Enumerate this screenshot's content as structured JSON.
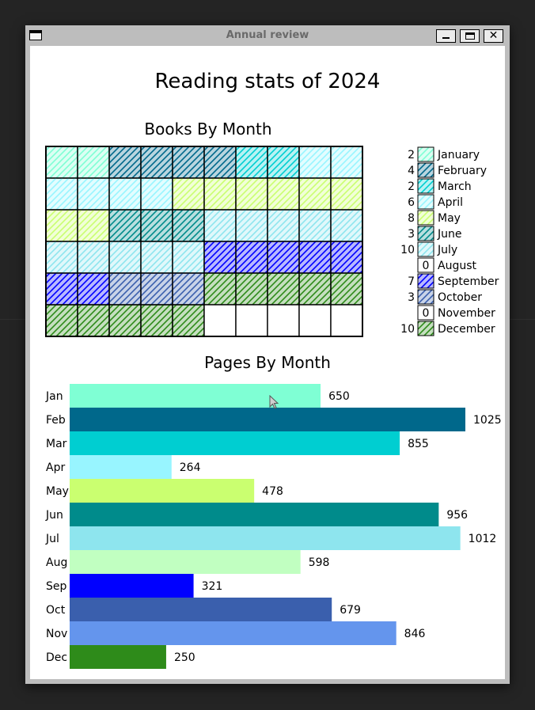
{
  "window": {
    "title": "Annual review",
    "minimize_glyph": "",
    "close_glyph": "✕"
  },
  "page": {
    "title": "Reading stats of 2024"
  },
  "colors": {
    "January": "#7fffd4",
    "February": "#00688b",
    "March": "#00ced1",
    "April": "#98f5ff",
    "May": "#caff70",
    "June": "#008b8b",
    "July": "#8ee5ee",
    "August": "#c1ffc1",
    "September": "#0000ff",
    "October": "#3a5fad",
    "November": "#6495ed",
    "December": "#2e8b1a"
  },
  "chart_data": [
    {
      "type": "waffle",
      "title": "Books By Month",
      "grid": {
        "rows": 6,
        "cols": 10
      },
      "legend_placement": "right",
      "categories": [
        "January",
        "February",
        "March",
        "April",
        "May",
        "June",
        "July",
        "August",
        "September",
        "October",
        "November",
        "December"
      ],
      "values": [
        2,
        4,
        2,
        6,
        8,
        3,
        10,
        0,
        7,
        3,
        0,
        10
      ]
    },
    {
      "type": "bar",
      "orientation": "horizontal",
      "title": "Pages By Month",
      "categories": [
        "Jan",
        "Feb",
        "Mar",
        "Apr",
        "May",
        "Jun",
        "Jul",
        "Aug",
        "Sep",
        "Oct",
        "Nov",
        "Dec"
      ],
      "values": [
        650,
        1025,
        855,
        264,
        478,
        956,
        1012,
        598,
        321,
        679,
        846,
        250
      ],
      "xlim": [
        0,
        1025
      ],
      "grid": false
    }
  ]
}
